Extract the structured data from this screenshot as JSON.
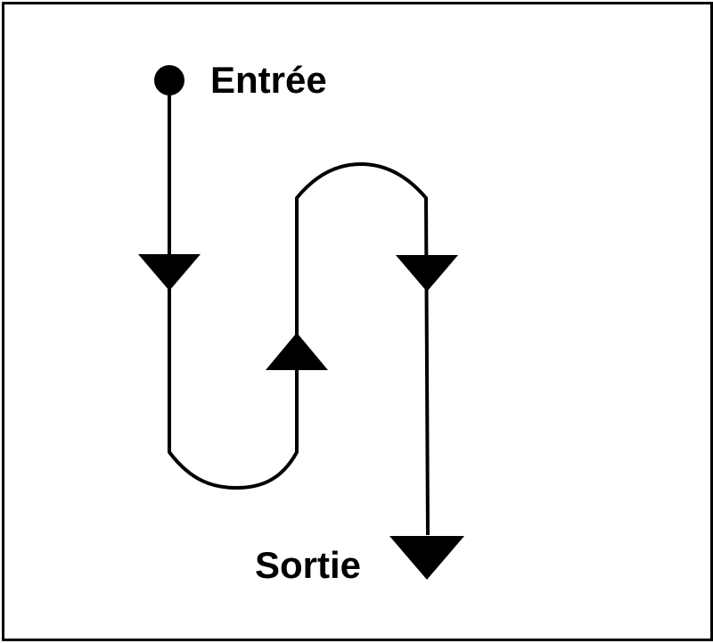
{
  "labels": {
    "entry": "Entrée",
    "exit": "Sortie"
  },
  "colors": {
    "stroke": "#000000",
    "background": "#ffffff"
  }
}
